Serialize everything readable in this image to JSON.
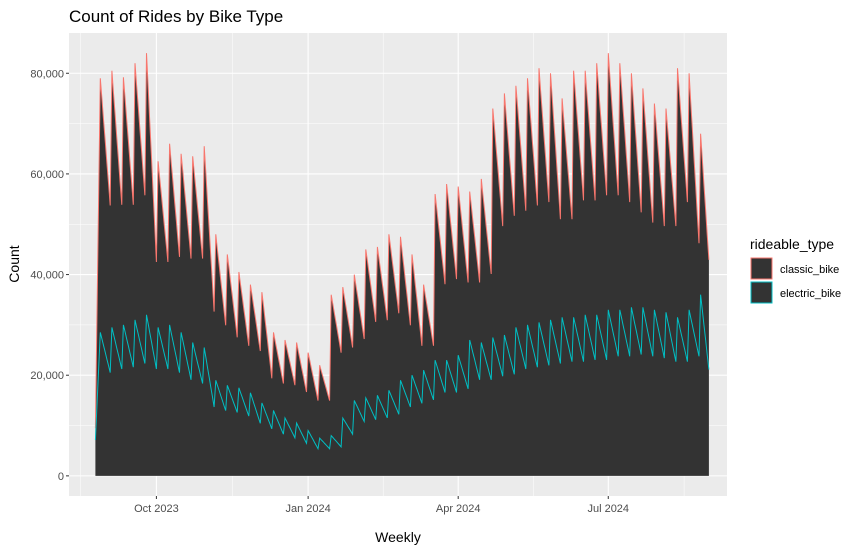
{
  "chart_data": {
    "type": "area",
    "title": "Count of Rides by Bike Type",
    "xlabel": "Weekly",
    "ylabel": "Count",
    "x_ticks": [
      "Oct 2023",
      "Jan 2024",
      "Apr 2024",
      "Jul 2024"
    ],
    "y_ticks": [
      "0",
      "20,000",
      "40,000",
      "60,000",
      "80,000"
    ],
    "ylim": [
      -4000,
      88000
    ],
    "grid": true,
    "legend_position": "right",
    "legend": {
      "title": "rideable_type",
      "items": [
        "classic_bike",
        "electric_bike"
      ]
    },
    "fill_color": "#333333",
    "colors": {
      "classic_bike": "#F8766D",
      "electric_bike": "#00BFC4"
    },
    "date_range": [
      "2023-08-25",
      "2024-08-31"
    ],
    "x_range": [
      "2023-08-09",
      "2024-09-11"
    ],
    "weekly_peaks": {
      "dates": [
        "2023-08-28",
        "2023-09-04",
        "2023-09-11",
        "2023-09-18",
        "2023-09-25",
        "2023-10-02",
        "2023-10-09",
        "2023-10-16",
        "2023-10-23",
        "2023-10-30",
        "2023-11-06",
        "2023-11-13",
        "2023-11-20",
        "2023-11-27",
        "2023-12-04",
        "2023-12-11",
        "2023-12-18",
        "2023-12-25",
        "2024-01-01",
        "2024-01-08",
        "2024-01-15",
        "2024-01-22",
        "2024-01-29",
        "2024-02-05",
        "2024-02-12",
        "2024-02-19",
        "2024-02-26",
        "2024-03-04",
        "2024-03-11",
        "2024-03-18",
        "2024-03-25",
        "2024-04-01",
        "2024-04-08",
        "2024-04-15",
        "2024-04-22",
        "2024-04-29",
        "2024-05-06",
        "2024-05-13",
        "2024-05-20",
        "2024-05-27",
        "2024-06-03",
        "2024-06-10",
        "2024-06-17",
        "2024-06-24",
        "2024-07-01",
        "2024-07-08",
        "2024-07-15",
        "2024-07-22",
        "2024-07-29",
        "2024-08-05",
        "2024-08-12",
        "2024-08-19",
        "2024-08-26"
      ],
      "classic_total": [
        79000,
        80500,
        79200,
        82000,
        84000,
        62500,
        66000,
        64000,
        63500,
        65500,
        48000,
        44000,
        40500,
        38000,
        36500,
        28500,
        27000,
        26500,
        24500,
        22000,
        36000,
        37500,
        40000,
        45000,
        45500,
        48000,
        47500,
        44000,
        38000,
        56000,
        58000,
        57500,
        56500,
        59000,
        73000,
        76000,
        77500,
        79000,
        81000,
        80000,
        75000,
        80500,
        80500,
        82000,
        84000,
        82000,
        80000,
        77000,
        74000,
        73000,
        81000,
        80000,
        68000
      ],
      "electric": [
        28500,
        29500,
        30000,
        31000,
        32000,
        29500,
        30000,
        28500,
        26500,
        25500,
        19000,
        18000,
        17500,
        16500,
        14500,
        13000,
        11500,
        10500,
        9000,
        7500,
        8000,
        11500,
        15000,
        15500,
        16000,
        17000,
        19000,
        20000,
        21000,
        23000,
        23000,
        24000,
        27000,
        26500,
        27500,
        28000,
        29500,
        30000,
        30500,
        31000,
        31500,
        31500,
        32000,
        32000,
        33000,
        33000,
        33500,
        33500,
        33000,
        32500,
        31500,
        33000,
        36000
      ]
    }
  }
}
